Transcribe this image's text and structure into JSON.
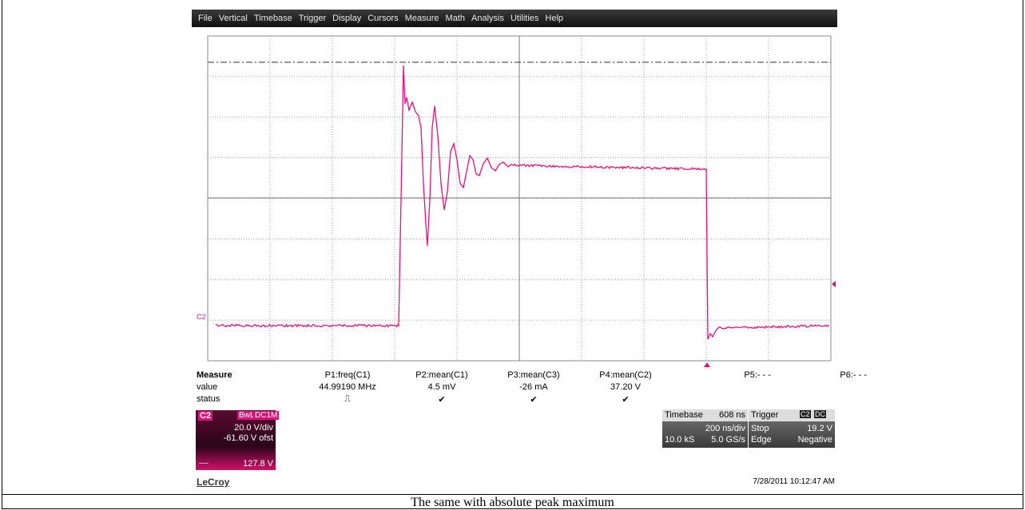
{
  "menu": [
    "File",
    "Vertical",
    "Timebase",
    "Trigger",
    "Display",
    "Cursors",
    "Measure",
    "Math",
    "Analysis",
    "Utilities",
    "Help"
  ],
  "trace_label": "C2",
  "measure": {
    "title": "Measure",
    "row_labels": [
      "value",
      "status"
    ],
    "columns": [
      {
        "name": "P1:freq(C1)",
        "value": "44.99190 MHz",
        "status": "⎍"
      },
      {
        "name": "P2:mean(C1)",
        "value": "4.5 mV",
        "status": "✔"
      },
      {
        "name": "P3:mean(C3)",
        "value": "-26 mA",
        "status": "✔"
      },
      {
        "name": "P4:mean(C2)",
        "value": "37.20 V",
        "status": "✔"
      },
      {
        "name": "P5:- - -"
      },
      {
        "name": "P6:- - -"
      }
    ]
  },
  "channel": {
    "name": "C2",
    "bandwidth": "BwL",
    "coupling": "DC1M",
    "scale": "20.0 V/div",
    "offset": "-61.60 V ofst",
    "marker": "----",
    "level": "127.8 V"
  },
  "timebase": {
    "title": "Timebase",
    "delay": "608 ns",
    "per_div": "200 ns/div",
    "samples": "10.0 kS",
    "rate": "5.0 GS/s"
  },
  "trigger": {
    "title": "Trigger",
    "source": "C2",
    "coupling": "DC",
    "mode": "Stop",
    "level": "19.2 V",
    "type": "Edge",
    "slope": "Negative"
  },
  "brand": "LeCroy",
  "timestamp": "7/28/2011 10:12:47 AM",
  "caption": "The same with absolute peak maximum"
}
